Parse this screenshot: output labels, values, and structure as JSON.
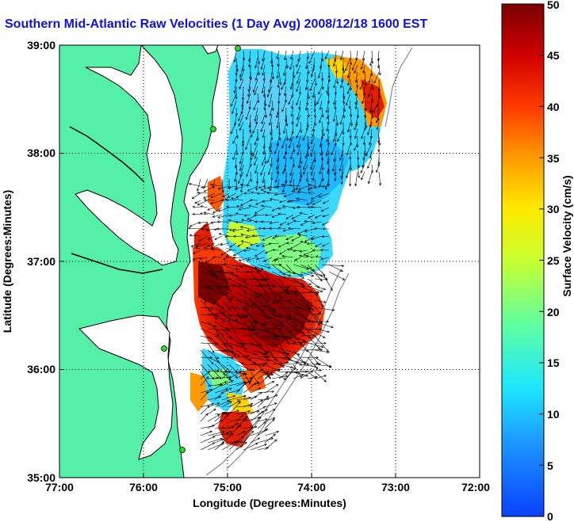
{
  "title": "Southern Mid-Atlantic Raw Velocities (1 Day Avg) 2008/12/18 1600 EST",
  "xlabel": "Longitude (Degrees:Minutes)",
  "ylabel": "Latitude (Degrees:Minutes)",
  "colorbar_label": "Surface Velocity (cm/s)",
  "x_ticks": [
    "77:00",
    "76:00",
    "75:00",
    "74:00",
    "73:00",
    "72:00"
  ],
  "y_ticks": [
    "39:00",
    "38:00",
    "37:00",
    "36:00",
    "35:00"
  ],
  "cbar_ticks": [
    "50",
    "45",
    "40",
    "35",
    "30",
    "25",
    "20",
    "15",
    "10",
    "5",
    "0"
  ],
  "colors": {
    "land": "#55f0a8",
    "water": "#ffffff",
    "title": "#1010e0",
    "grid": "#000000",
    "station_marker": "#22dd22"
  },
  "colormap": "jet",
  "scale_range_cm_s": [
    0,
    50
  ],
  "lon_range": [
    -77,
    -72
  ],
  "lat_range": [
    35,
    39
  ]
}
